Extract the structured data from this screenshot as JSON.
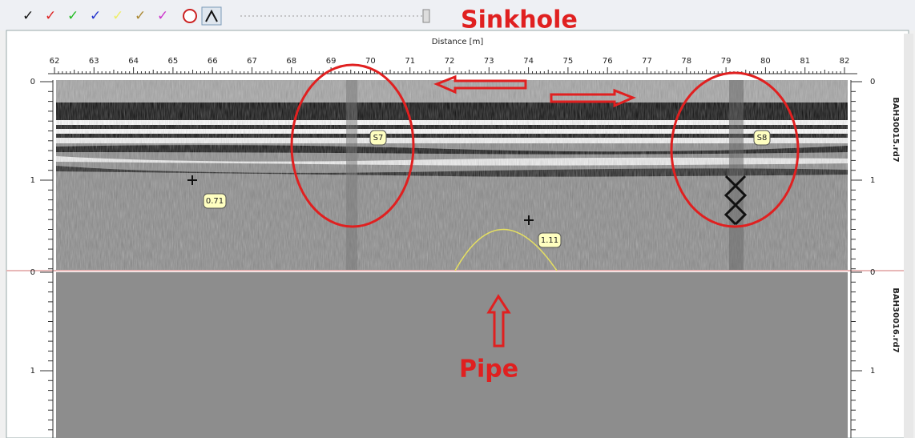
{
  "toolbar": {
    "annotation": "Sinkhole"
  },
  "plot": {
    "x_axis": {
      "label": "Distance [m]",
      "ticks": [
        62,
        63,
        64,
        65,
        66,
        67,
        68,
        69,
        70,
        71,
        72,
        73,
        74,
        75,
        76,
        77,
        78,
        79,
        80,
        81,
        82
      ]
    },
    "panes": [
      {
        "file": "BAH30015.rd7",
        "depth_ticks": [
          0,
          1
        ]
      },
      {
        "file": "BAH30016.rd7",
        "depth_ticks": [
          0,
          1
        ]
      }
    ],
    "markers": [
      {
        "label": "S7"
      },
      {
        "label": "S8"
      },
      {
        "label": "0.71"
      },
      {
        "label": "1.11"
      }
    ],
    "annotations": {
      "pipe": "Pipe"
    }
  }
}
